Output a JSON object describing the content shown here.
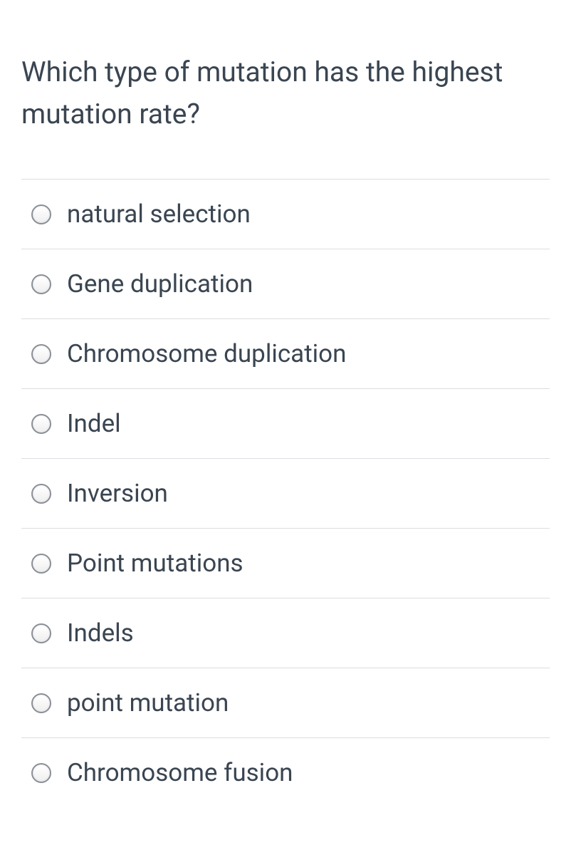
{
  "question": {
    "text": "Which type of mutation has the highest mutation rate?",
    "text_color": "#3a4551",
    "font_size": 39
  },
  "answers": [
    {
      "label": "natural selection"
    },
    {
      "label": "Gene duplication"
    },
    {
      "label": "Chromosome duplication"
    },
    {
      "label": "Indel"
    },
    {
      "label": "Inversion"
    },
    {
      "label": "Point mutations"
    },
    {
      "label": "Indels"
    },
    {
      "label": "point mutation"
    },
    {
      "label": "Chromosome fusion"
    }
  ],
  "styling": {
    "background_color": "#ffffff",
    "border_color": "#dcdde1",
    "radio_border_color": "#8a8f96",
    "answer_text_color": "#3a4551",
    "answer_font_size": 35
  }
}
